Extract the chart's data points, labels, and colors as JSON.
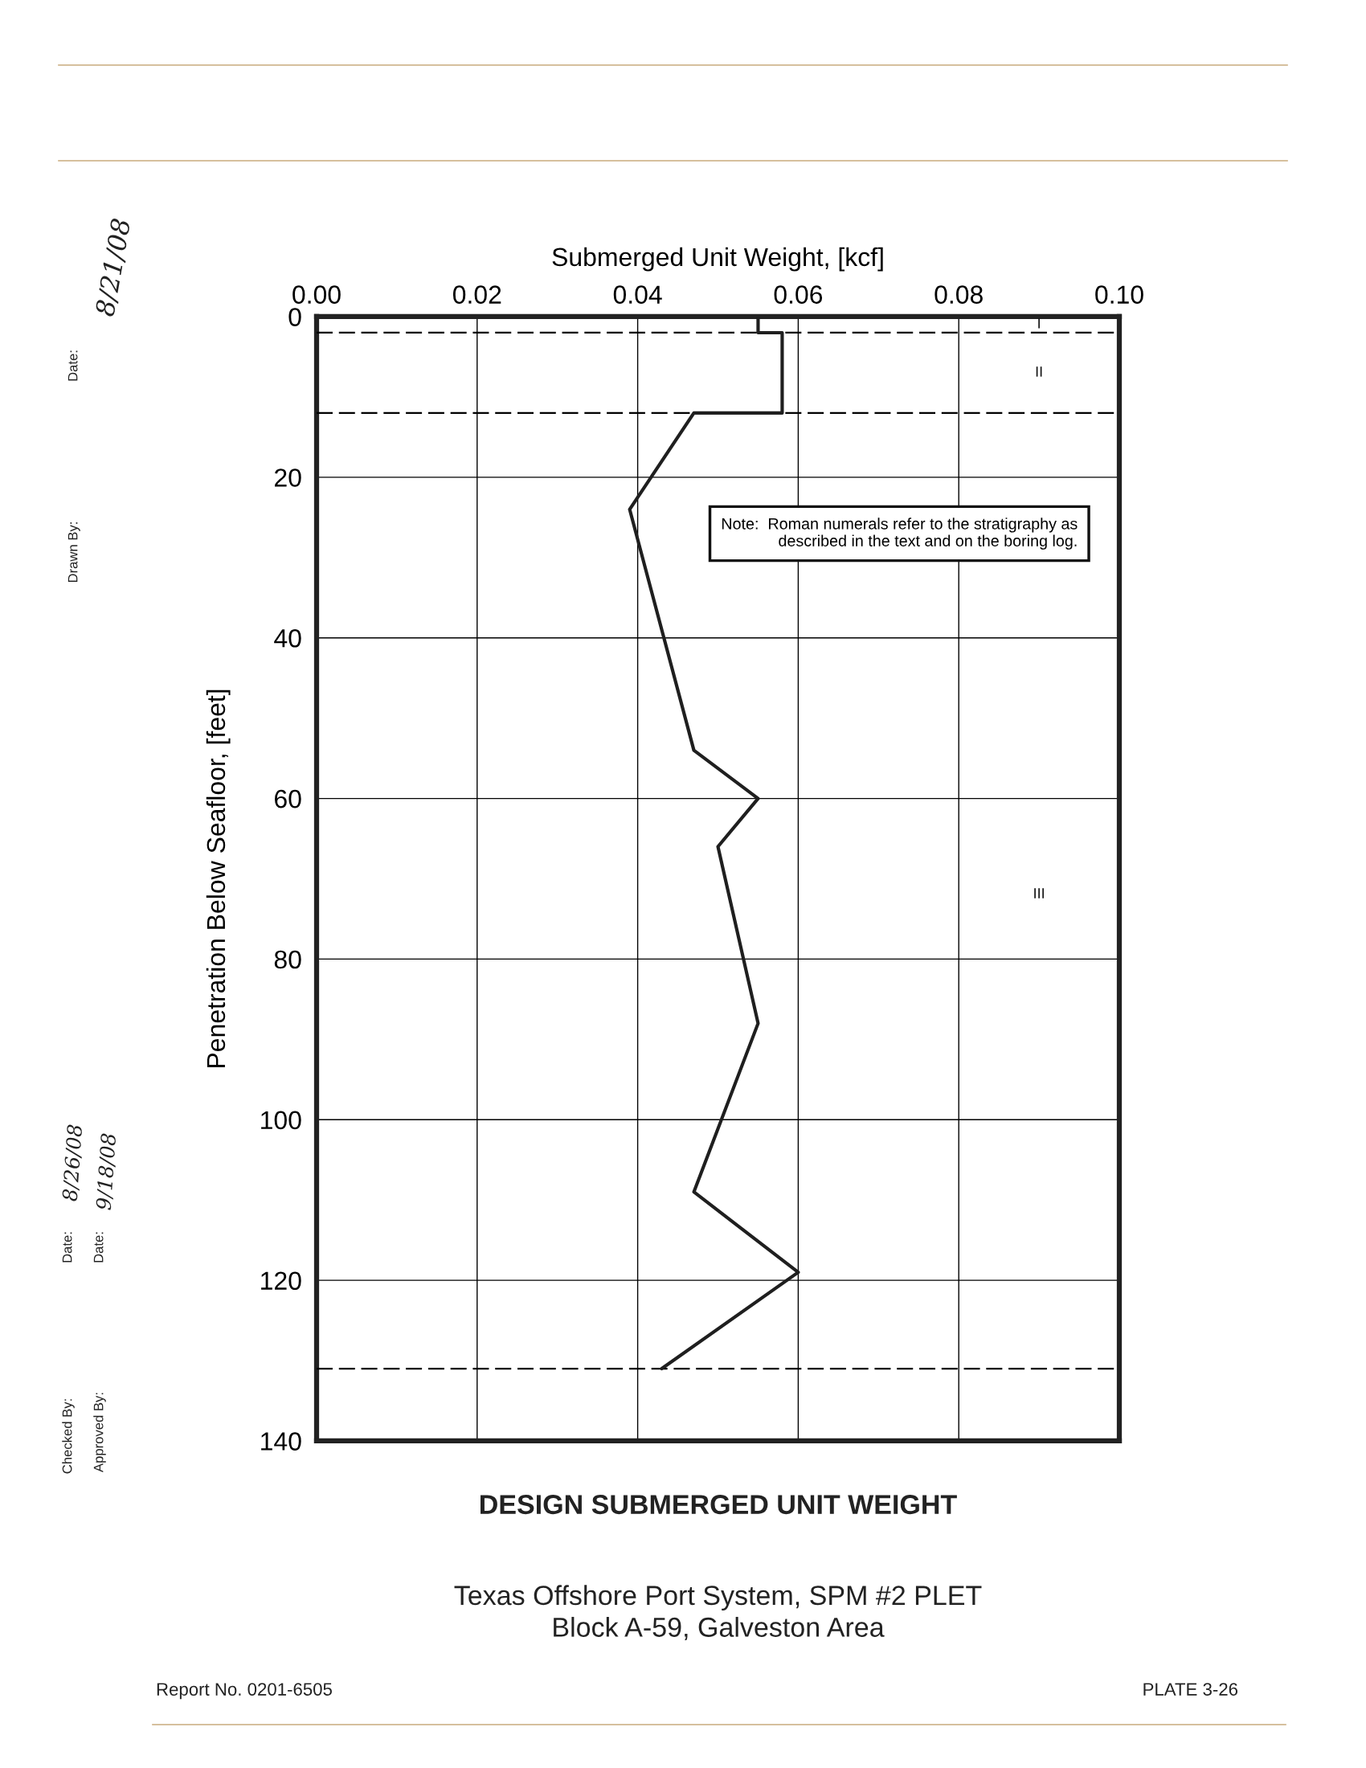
{
  "chart_data": {
    "type": "line",
    "title": "DESIGN SUBMERGED UNIT WEIGHT",
    "subtitle": "Texas Offshore Port System, SPM #2 PLET\nBlock A-59, Galveston Area",
    "xlabel": "Submerged Unit Weight, [kcf]",
    "ylabel": "Penetration Below Seafloor, [feet]",
    "series": [
      {
        "color": "#1f1f1f",
        "line_style": "solid",
        "x": [
          0.055,
          0.055,
          0.058,
          0.058,
          0.047,
          0.039,
          0.047,
          0.055,
          0.05,
          0.055,
          0.047,
          0.06,
          0.043
        ],
        "values": [
          0,
          2,
          2,
          12,
          12,
          24,
          54,
          60,
          66,
          88,
          109,
          119,
          131
        ]
      }
    ],
    "xlim": [
      0,
      0.1
    ],
    "xticks": [
      {
        "value": 0,
        "label": "0.00"
      },
      {
        "value": 0.02,
        "label": "0.02"
      },
      {
        "value": 0.04,
        "label": "0.04"
      },
      {
        "value": 0.06,
        "label": "0.06"
      },
      {
        "value": 0.08,
        "label": "0.08"
      },
      {
        "value": 0.1,
        "label": "0.10"
      }
    ],
    "ylim": [
      140,
      0
    ],
    "yticks": [
      0,
      20,
      40,
      60,
      80,
      100,
      120,
      140
    ],
    "grid": true,
    "ref_lines": [
      {
        "axis": "y",
        "value": 2,
        "color": "#000000",
        "line_style": "dashed"
      },
      {
        "axis": "y",
        "value": 12,
        "color": "#000000",
        "line_style": "dashed"
      },
      {
        "axis": "y",
        "value": 131,
        "color": "#000000",
        "line_style": "dashed"
      }
    ],
    "annotations": [
      "I",
      "II",
      "III",
      "Note:  Roman numerals refer to the stratigraphy as\ndescribed in the text and on the boring log.",
      "Report No. 0201-6505",
      "PLATE 3-26",
      "Drawn By:",
      "Date:",
      "8/21/08",
      "Checked By:",
      "Date:",
      "8/26/08",
      "Approved By:",
      "Date:",
      "9/18/08"
    ]
  }
}
